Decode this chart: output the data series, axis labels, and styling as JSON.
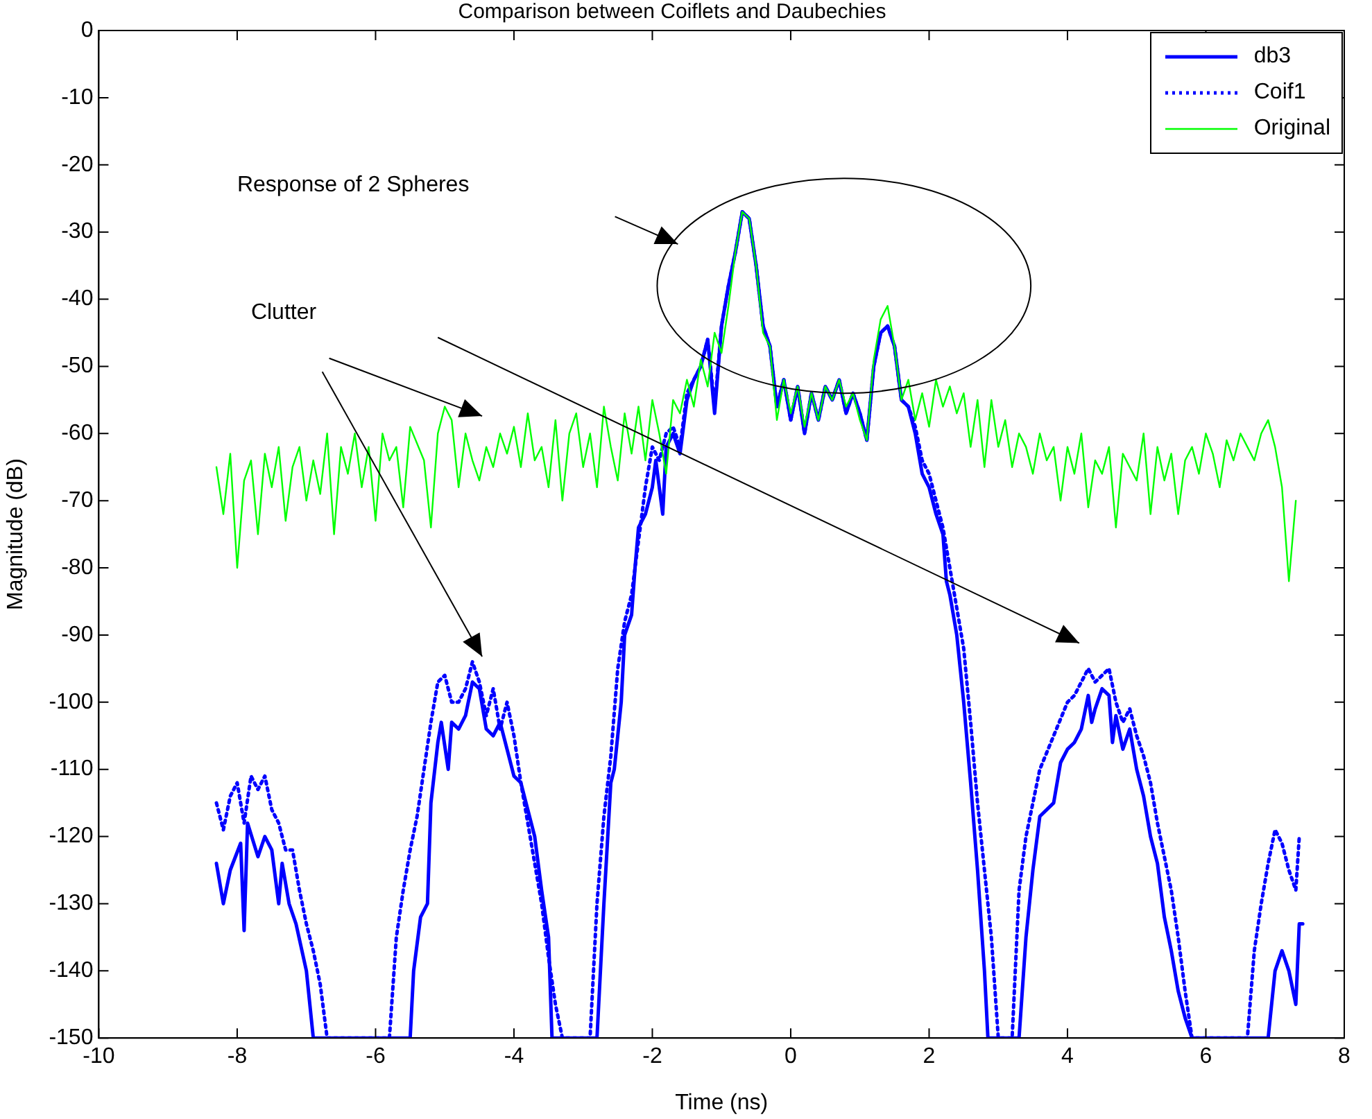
{
  "chart_data": {
    "type": "line",
    "title": "Comparison between Coiflets and Daubechies",
    "xlabel": "Time (ns)",
    "ylabel": "Magnitude (dB)",
    "xlim": [
      -10,
      8
    ],
    "xticks": [
      -10,
      -8,
      -6,
      -4,
      -2,
      0,
      2,
      4,
      6,
      8
    ],
    "ylim": [
      -150,
      0
    ],
    "yticks": [
      -150,
      -140,
      -130,
      -120,
      -110,
      -100,
      -90,
      -80,
      -70,
      -60,
      -50,
      -40,
      -30,
      -20,
      -10,
      0
    ],
    "legend": "top right",
    "marker": "none",
    "annotations": [
      "Response of 2 Spheres",
      "Clutter"
    ],
    "series": [
      {
        "name": "db3",
        "color": "#0000ff",
        "line_style": "solid",
        "x": [
          -8.3,
          -8.2,
          -8.1,
          -7.95,
          -7.9,
          -7.85,
          -7.7,
          -7.6,
          -7.5,
          -7.4,
          -7.35,
          -7.25,
          -7.15,
          -7.0,
          -6.9,
          -5.5,
          -5.45,
          -5.35,
          -5.25,
          -5.2,
          -5.1,
          -5.05,
          -4.95,
          -4.9,
          -4.8,
          -4.7,
          -4.6,
          -4.5,
          -4.4,
          -4.3,
          -4.2,
          -4.1,
          -4.0,
          -3.9,
          -3.8,
          -3.7,
          -3.6,
          -3.5,
          -3.45,
          -2.8,
          -2.7,
          -2.6,
          -2.55,
          -2.45,
          -2.4,
          -2.3,
          -2.25,
          -2.2,
          -2.1,
          -2.0,
          -1.95,
          -1.85,
          -1.8,
          -1.7,
          -1.6,
          -1.5,
          -1.4,
          -1.3,
          -1.2,
          -1.1,
          -1.0,
          -0.9,
          -0.8,
          -0.7,
          -0.6,
          -0.5,
          -0.4,
          -0.3,
          -0.2,
          -0.1,
          0,
          0.1,
          0.2,
          0.3,
          0.4,
          0.5,
          0.6,
          0.7,
          0.8,
          0.9,
          1.0,
          1.1,
          1.2,
          1.3,
          1.4,
          1.5,
          1.6,
          1.7,
          1.8,
          1.9,
          2.0,
          2.1,
          2.2,
          2.25,
          2.3,
          2.4,
          2.5,
          2.6,
          2.7,
          2.8,
          2.85,
          3.3,
          3.4,
          3.5,
          3.6,
          3.8,
          3.9,
          4.0,
          4.1,
          4.2,
          4.3,
          4.35,
          4.4,
          4.5,
          4.6,
          4.65,
          4.7,
          4.8,
          4.9,
          5.0,
          5.1,
          5.2,
          5.3,
          5.4,
          5.5,
          5.6,
          5.7,
          5.8,
          6.9,
          7.0,
          7.1,
          7.2,
          7.3,
          7.35,
          7.4
        ],
        "values": [
          -124,
          -130,
          -125,
          -121,
          -134,
          -118,
          -123,
          -120,
          -122,
          -130,
          -124,
          -130,
          -133,
          -140,
          -150,
          -150,
          -140,
          -132,
          -130,
          -115,
          -106,
          -103,
          -110,
          -103,
          -104,
          -102,
          -97,
          -98,
          -104,
          -105,
          -103,
          -107,
          -111,
          -112,
          -116,
          -120,
          -128,
          -135,
          -150,
          -150,
          -130,
          -112,
          -110,
          -100,
          -90,
          -87,
          -80,
          -74,
          -72,
          -68,
          -64,
          -72,
          -62,
          -60,
          -63,
          -55,
          -52,
          -50,
          -46,
          -57,
          -44,
          -38,
          -33,
          -27,
          -28,
          -35,
          -44,
          -47,
          -56,
          -52,
          -58,
          -53,
          -60,
          -54,
          -58,
          -53,
          -55,
          -52,
          -57,
          -54,
          -57,
          -61,
          -50,
          -45,
          -44,
          -47,
          -55,
          -56,
          -60,
          -66,
          -68,
          -72,
          -75,
          -82,
          -84,
          -90,
          -100,
          -112,
          -125,
          -140,
          -150,
          -150,
          -135,
          -125,
          -117,
          -115,
          -109,
          -107,
          -106,
          -104,
          -99,
          -103,
          -101,
          -98,
          -99,
          -106,
          -102,
          -107,
          -104,
          -110,
          -114,
          -120,
          -124,
          -132,
          -137,
          -143,
          -147,
          -150,
          -150,
          -140,
          -137,
          -140,
          -145,
          -133,
          -133
        ]
      },
      {
        "name": "Coif1",
        "color": "#0000ff",
        "line_style": "dotted",
        "x": [
          -8.3,
          -8.2,
          -8.1,
          -8.0,
          -7.9,
          -7.8,
          -7.7,
          -7.6,
          -7.5,
          -7.4,
          -7.3,
          -7.2,
          -7.1,
          -7.0,
          -6.9,
          -6.8,
          -6.7,
          -5.8,
          -5.7,
          -5.6,
          -5.5,
          -5.4,
          -5.3,
          -5.2,
          -5.1,
          -5.0,
          -4.9,
          -4.8,
          -4.7,
          -4.6,
          -4.5,
          -4.4,
          -4.3,
          -4.2,
          -4.1,
          -4.0,
          -3.9,
          -3.8,
          -3.7,
          -3.6,
          -3.5,
          -3.4,
          -3.3,
          -2.9,
          -2.8,
          -2.7,
          -2.6,
          -2.5,
          -2.4,
          -2.3,
          -2.2,
          -2.1,
          -2.0,
          -1.9,
          -1.8,
          -1.7,
          -1.6,
          -1.5,
          -1.4,
          -1.3,
          -1.2,
          -1.1,
          -1.0,
          -0.9,
          -0.8,
          -0.7,
          -0.6,
          -0.5,
          -0.4,
          -0.3,
          -0.2,
          -0.1,
          0,
          0.1,
          0.2,
          0.3,
          0.4,
          0.5,
          0.6,
          0.7,
          0.8,
          0.9,
          1.0,
          1.1,
          1.2,
          1.3,
          1.4,
          1.5,
          1.6,
          1.7,
          1.8,
          1.9,
          2.0,
          2.1,
          2.2,
          2.3,
          2.4,
          2.5,
          2.6,
          2.7,
          2.8,
          2.9,
          3.0,
          3.2,
          3.3,
          3.4,
          3.6,
          3.8,
          4.0,
          4.1,
          4.2,
          4.3,
          4.4,
          4.5,
          4.6,
          4.7,
          4.8,
          4.9,
          5.0,
          5.1,
          5.2,
          5.3,
          5.4,
          5.5,
          5.6,
          5.7,
          5.8,
          6.6,
          6.7,
          6.8,
          6.9,
          7.0,
          7.1,
          7.2,
          7.3,
          7.35
        ],
        "values": [
          -115,
          -119,
          -114,
          -112,
          -118,
          -111,
          -113,
          -111,
          -116,
          -118,
          -122,
          -122,
          -128,
          -133,
          -137,
          -142,
          -150,
          -150,
          -135,
          -128,
          -122,
          -117,
          -110,
          -103,
          -97,
          -96,
          -100,
          -100,
          -98,
          -94,
          -97,
          -102,
          -98,
          -104,
          -100,
          -105,
          -112,
          -118,
          -124,
          -130,
          -138,
          -145,
          -150,
          -150,
          -130,
          -117,
          -108,
          -95,
          -88,
          -84,
          -76,
          -68,
          -62,
          -64,
          -60,
          -59,
          -62,
          -54,
          -52,
          -50,
          -46,
          -56,
          -44,
          -38,
          -33,
          -27,
          -28,
          -35,
          -44,
          -47,
          -56,
          -52,
          -58,
          -53,
          -60,
          -54,
          -58,
          -53,
          -55,
          -52,
          -57,
          -54,
          -57,
          -61,
          -50,
          -45,
          -44,
          -47,
          -55,
          -56,
          -59,
          -64,
          -66,
          -70,
          -74,
          -80,
          -86,
          -92,
          -103,
          -115,
          -125,
          -135,
          -150,
          -150,
          -128,
          -120,
          -110,
          -105,
          -100,
          -99,
          -97,
          -95,
          -97,
          -96,
          -95,
          -100,
          -103,
          -101,
          -105,
          -108,
          -112,
          -118,
          -123,
          -128,
          -135,
          -143,
          -150,
          -150,
          -137,
          -130,
          -124,
          -119,
          -121,
          -125,
          -128,
          -120
        ]
      },
      {
        "name": "Original",
        "color": "#00ff00",
        "line_style": "solid",
        "x": [
          -8.3,
          -8.2,
          -8.1,
          -8.0,
          -7.9,
          -7.8,
          -7.7,
          -7.6,
          -7.5,
          -7.4,
          -7.3,
          -7.2,
          -7.1,
          -7.0,
          -6.9,
          -6.8,
          -6.7,
          -6.6,
          -6.5,
          -6.4,
          -6.3,
          -6.2,
          -6.1,
          -6.0,
          -5.9,
          -5.8,
          -5.7,
          -5.6,
          -5.5,
          -5.3,
          -5.2,
          -5.1,
          -5.0,
          -4.9,
          -4.8,
          -4.7,
          -4.6,
          -4.5,
          -4.4,
          -4.3,
          -4.2,
          -4.1,
          -4.0,
          -3.9,
          -3.8,
          -3.7,
          -3.6,
          -3.5,
          -3.4,
          -3.3,
          -3.2,
          -3.1,
          -3.0,
          -2.9,
          -2.8,
          -2.7,
          -2.6,
          -2.5,
          -2.4,
          -2.3,
          -2.2,
          -2.1,
          -2.0,
          -1.9,
          -1.8,
          -1.7,
          -1.6,
          -1.5,
          -1.4,
          -1.3,
          -1.2,
          -1.1,
          -1.0,
          -0.9,
          -0.8,
          -0.7,
          -0.6,
          -0.5,
          -0.4,
          -0.3,
          -0.2,
          -0.1,
          0,
          0.1,
          0.2,
          0.3,
          0.4,
          0.5,
          0.6,
          0.7,
          0.8,
          0.9,
          1.0,
          1.1,
          1.2,
          1.3,
          1.4,
          1.5,
          1.6,
          1.7,
          1.8,
          1.9,
          2.0,
          2.1,
          2.2,
          2.3,
          2.4,
          2.5,
          2.6,
          2.7,
          2.8,
          2.9,
          3.0,
          3.1,
          3.2,
          3.3,
          3.4,
          3.5,
          3.6,
          3.7,
          3.8,
          3.9,
          4.0,
          4.1,
          4.2,
          4.3,
          4.4,
          4.5,
          4.6,
          4.7,
          4.8,
          4.9,
          5.0,
          5.1,
          5.2,
          5.3,
          5.4,
          5.5,
          5.6,
          5.7,
          5.8,
          5.9,
          6.0,
          6.1,
          6.2,
          6.3,
          6.4,
          6.5,
          6.6,
          6.7,
          6.8,
          6.9,
          7.0,
          7.1,
          7.2,
          7.3
        ],
        "values": [
          -65,
          -72,
          -63,
          -80,
          -67,
          -64,
          -75,
          -63,
          -68,
          -62,
          -73,
          -65,
          -62,
          -70,
          -64,
          -69,
          -60,
          -75,
          -62,
          -66,
          -60,
          -68,
          -62,
          -73,
          -60,
          -64,
          -62,
          -71,
          -59,
          -64,
          -74,
          -60,
          -56,
          -58,
          -68,
          -60,
          -64,
          -67,
          -62,
          -65,
          -60,
          -63,
          -59,
          -65,
          -57,
          -64,
          -62,
          -68,
          -58,
          -70,
          -60,
          -57,
          -65,
          -60,
          -68,
          -56,
          -62,
          -67,
          -57,
          -63,
          -56,
          -64,
          -55,
          -60,
          -66,
          -55,
          -57,
          -52,
          -56,
          -49,
          -53,
          -45,
          -48,
          -41,
          -33,
          -27,
          -28,
          -35,
          -45,
          -47,
          -58,
          -52,
          -57,
          -53,
          -59,
          -54,
          -58,
          -53,
          -55,
          -52,
          -56,
          -54,
          -58,
          -61,
          -49,
          -43,
          -41,
          -47,
          -55,
          -52,
          -58,
          -54,
          -59,
          -52,
          -56,
          -53,
          -57,
          -54,
          -62,
          -55,
          -65,
          -55,
          -62,
          -58,
          -65,
          -60,
          -62,
          -66,
          -60,
          -64,
          -62,
          -70,
          -62,
          -66,
          -60,
          -71,
          -64,
          -66,
          -62,
          -74,
          -63,
          -65,
          -67,
          -60,
          -72,
          -62,
          -67,
          -63,
          -72,
          -64,
          -62,
          -66,
          -60,
          -63,
          -68,
          -61,
          -64,
          -60,
          -62,
          -64,
          -60,
          -58,
          -62,
          -68,
          -82,
          -70
        ]
      }
    ]
  }
}
